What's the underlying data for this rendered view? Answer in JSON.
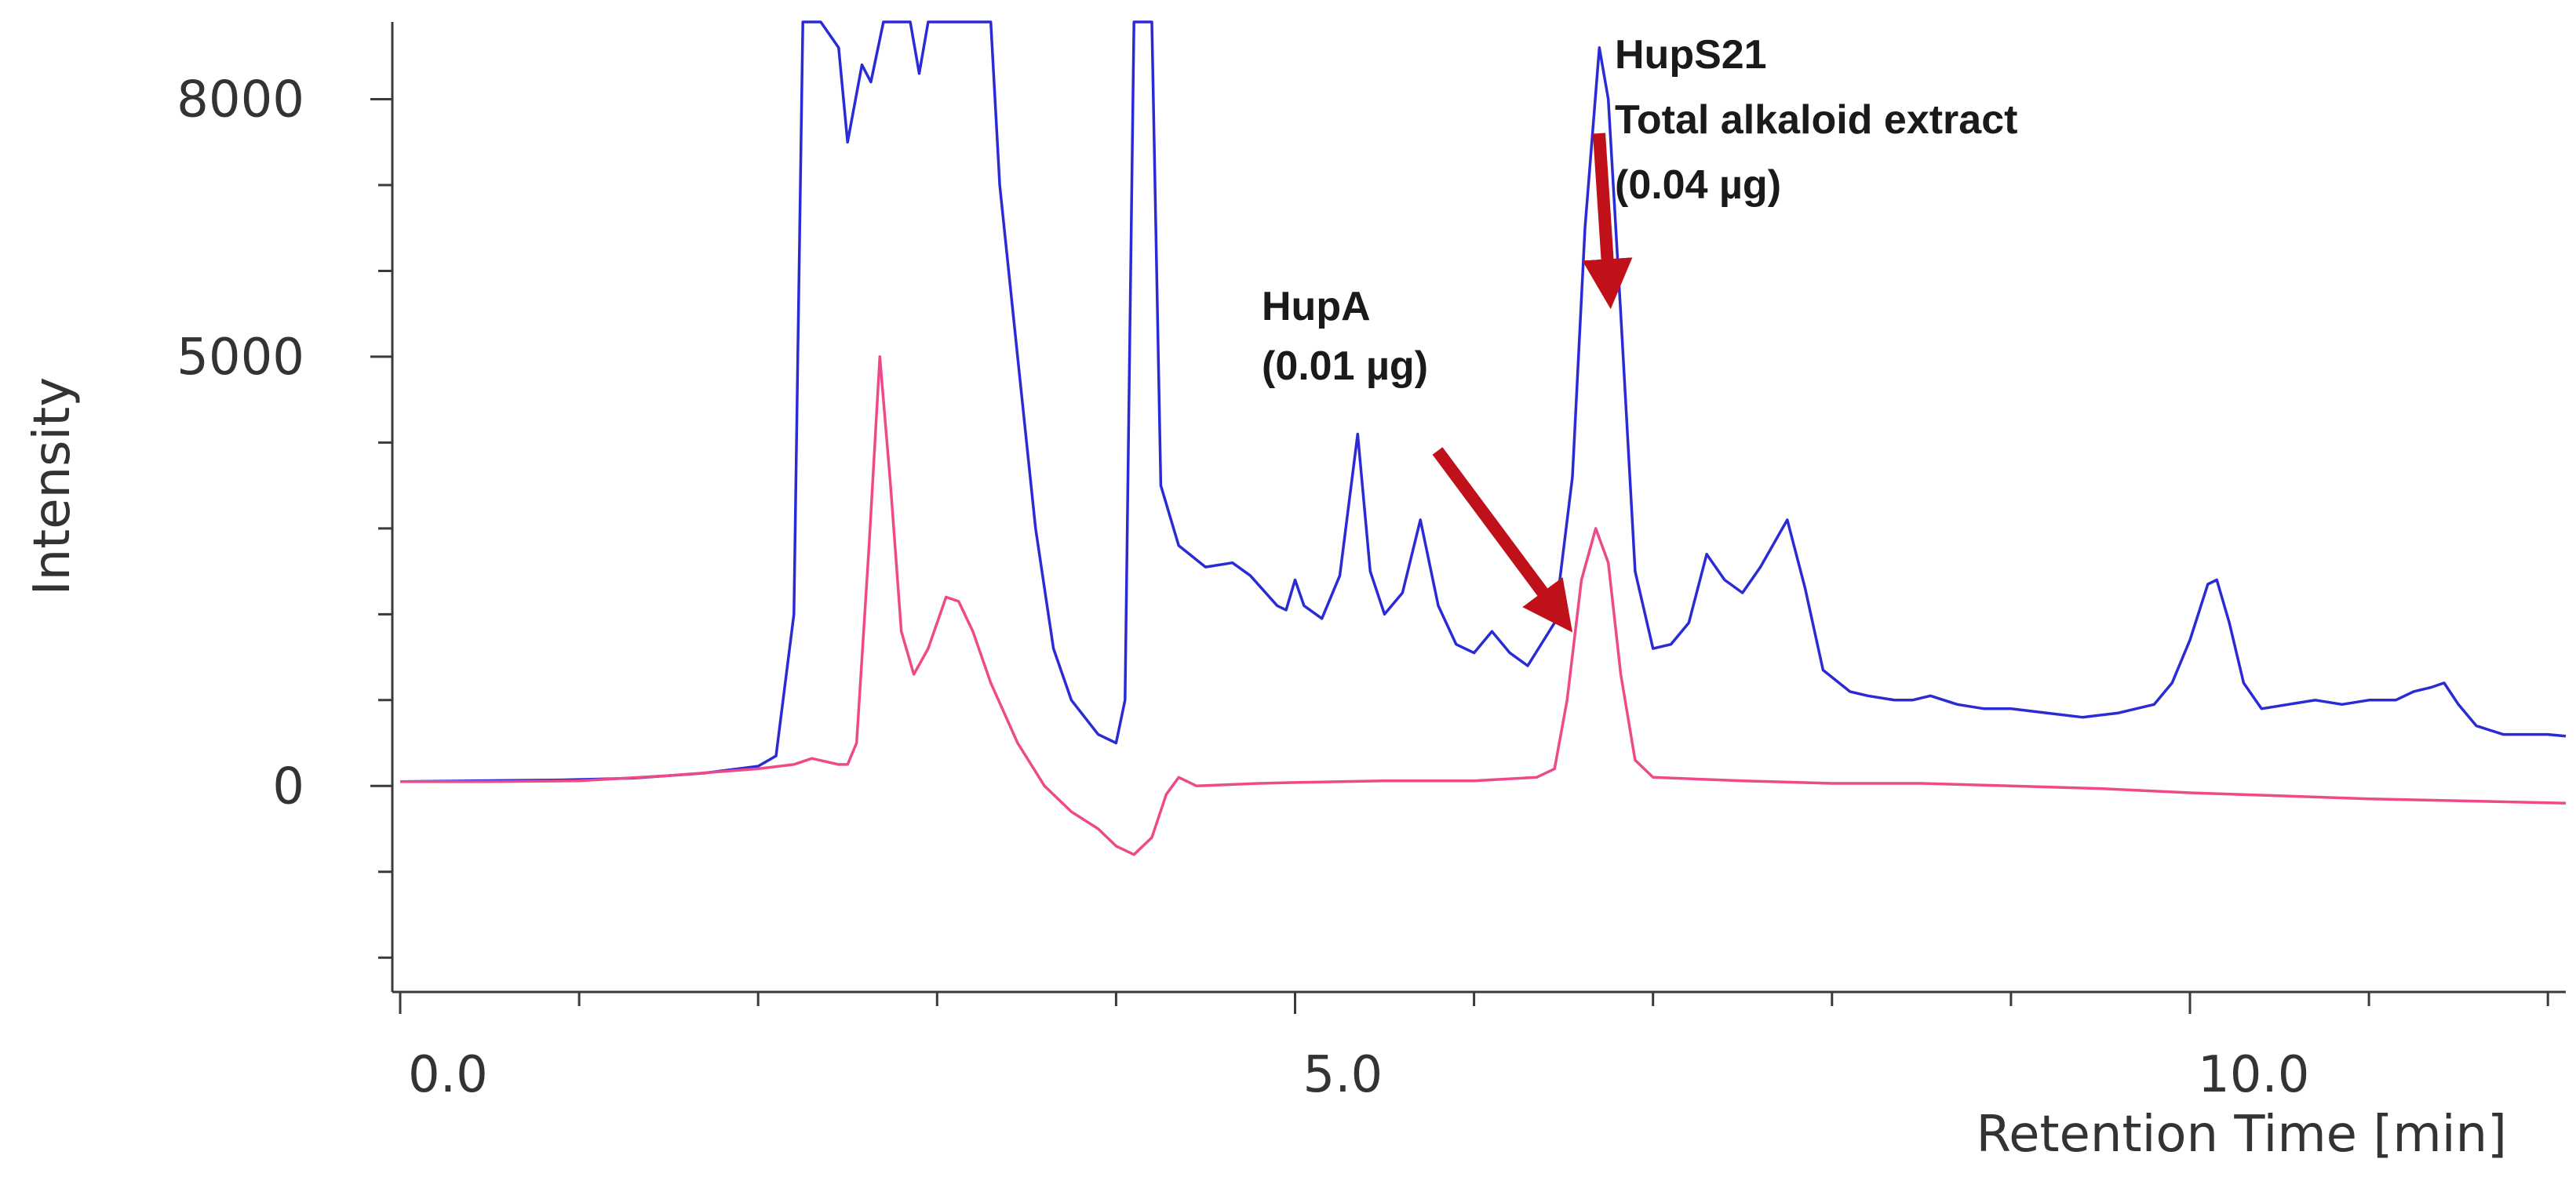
{
  "chart_data": {
    "type": "line",
    "xlabel": "Retention Time [min]",
    "ylabel": "Intensity",
    "xlim": [
      0,
      12.1
    ],
    "ylim": [
      -2400,
      8900
    ],
    "x_ticks": [
      0.0,
      5.0,
      10.0
    ],
    "x_tick_labels": [
      "0.0",
      "5.0",
      "10.0"
    ],
    "y_ticks": [
      0,
      5000,
      8000
    ],
    "y_tick_labels": [
      "0",
      "5000",
      "8000"
    ],
    "grid": false,
    "legend": "none",
    "series": [
      {
        "color": "#2b2bd6",
        "points": [
          [
            0,
            50
          ],
          [
            0.4,
            60
          ],
          [
            0.9,
            70
          ],
          [
            1.3,
            90
          ],
          [
            1.7,
            150
          ],
          [
            2.0,
            230
          ],
          [
            2.1,
            350
          ],
          [
            2.2,
            2000
          ],
          [
            2.25,
            8900
          ],
          [
            2.35,
            8900
          ],
          [
            2.45,
            8600
          ],
          [
            2.5,
            7500
          ],
          [
            2.58,
            8400
          ],
          [
            2.63,
            8200
          ],
          [
            2.7,
            8900
          ],
          [
            2.85,
            8900
          ],
          [
            2.9,
            8300
          ],
          [
            2.95,
            8900
          ],
          [
            3.3,
            8900
          ],
          [
            3.35,
            7000
          ],
          [
            3.45,
            5000
          ],
          [
            3.55,
            3000
          ],
          [
            3.6,
            2300
          ],
          [
            3.65,
            1600
          ],
          [
            3.75,
            1000
          ],
          [
            3.9,
            600
          ],
          [
            4.0,
            500
          ],
          [
            4.05,
            1000
          ],
          [
            4.1,
            8900
          ],
          [
            4.2,
            8900
          ],
          [
            4.25,
            3500
          ],
          [
            4.35,
            2800
          ],
          [
            4.5,
            2550
          ],
          [
            4.65,
            2600
          ],
          [
            4.75,
            2450
          ],
          [
            4.9,
            2100
          ],
          [
            4.95,
            2050
          ],
          [
            5.0,
            2400
          ],
          [
            5.05,
            2100
          ],
          [
            5.15,
            1950
          ],
          [
            5.25,
            2450
          ],
          [
            5.35,
            4100
          ],
          [
            5.42,
            2500
          ],
          [
            5.5,
            2000
          ],
          [
            5.6,
            2250
          ],
          [
            5.7,
            3100
          ],
          [
            5.8,
            2100
          ],
          [
            5.9,
            1650
          ],
          [
            6.0,
            1550
          ],
          [
            6.1,
            1800
          ],
          [
            6.2,
            1550
          ],
          [
            6.3,
            1400
          ],
          [
            6.45,
            1900
          ],
          [
            6.55,
            3600
          ],
          [
            6.62,
            6500
          ],
          [
            6.7,
            8600
          ],
          [
            6.75,
            8000
          ],
          [
            6.82,
            5500
          ],
          [
            6.9,
            2500
          ],
          [
            7.0,
            1600
          ],
          [
            7.1,
            1650
          ],
          [
            7.2,
            1900
          ],
          [
            7.3,
            2700
          ],
          [
            7.4,
            2400
          ],
          [
            7.5,
            2250
          ],
          [
            7.6,
            2550
          ],
          [
            7.75,
            3100
          ],
          [
            7.85,
            2300
          ],
          [
            7.95,
            1350
          ],
          [
            8.1,
            1100
          ],
          [
            8.2,
            1050
          ],
          [
            8.35,
            1000
          ],
          [
            8.45,
            1000
          ],
          [
            8.55,
            1050
          ],
          [
            8.7,
            950
          ],
          [
            8.85,
            900
          ],
          [
            9.0,
            900
          ],
          [
            9.2,
            850
          ],
          [
            9.4,
            800
          ],
          [
            9.6,
            850
          ],
          [
            9.8,
            950
          ],
          [
            9.9,
            1200
          ],
          [
            10.0,
            1700
          ],
          [
            10.1,
            2350
          ],
          [
            10.15,
            2400
          ],
          [
            10.22,
            1900
          ],
          [
            10.3,
            1200
          ],
          [
            10.4,
            900
          ],
          [
            10.55,
            950
          ],
          [
            10.7,
            1000
          ],
          [
            10.85,
            950
          ],
          [
            11.0,
            1000
          ],
          [
            11.15,
            1000
          ],
          [
            11.25,
            1100
          ],
          [
            11.35,
            1150
          ],
          [
            11.42,
            1200
          ],
          [
            11.5,
            950
          ],
          [
            11.6,
            700
          ],
          [
            11.75,
            600
          ],
          [
            12.0,
            600
          ],
          [
            12.1,
            580
          ]
        ]
      },
      {
        "color": "#ee4a8a",
        "points": [
          [
            0,
            50
          ],
          [
            0.5,
            50
          ],
          [
            1.0,
            60
          ],
          [
            1.5,
            120
          ],
          [
            2.0,
            200
          ],
          [
            2.2,
            250
          ],
          [
            2.3,
            320
          ],
          [
            2.45,
            250
          ],
          [
            2.5,
            250
          ],
          [
            2.55,
            500
          ],
          [
            2.62,
            2800
          ],
          [
            2.68,
            5000
          ],
          [
            2.74,
            3500
          ],
          [
            2.8,
            1800
          ],
          [
            2.87,
            1300
          ],
          [
            2.95,
            1600
          ],
          [
            3.05,
            2200
          ],
          [
            3.12,
            2150
          ],
          [
            3.2,
            1800
          ],
          [
            3.3,
            1200
          ],
          [
            3.45,
            500
          ],
          [
            3.6,
            0
          ],
          [
            3.75,
            -300
          ],
          [
            3.9,
            -500
          ],
          [
            4.0,
            -700
          ],
          [
            4.1,
            -800
          ],
          [
            4.2,
            -600
          ],
          [
            4.28,
            -100
          ],
          [
            4.35,
            100
          ],
          [
            4.45,
            0
          ],
          [
            4.8,
            30
          ],
          [
            5.0,
            40
          ],
          [
            5.5,
            60
          ],
          [
            6.0,
            60
          ],
          [
            6.35,
            100
          ],
          [
            6.45,
            200
          ],
          [
            6.52,
            1000
          ],
          [
            6.6,
            2400
          ],
          [
            6.68,
            3000
          ],
          [
            6.75,
            2600
          ],
          [
            6.82,
            1300
          ],
          [
            6.9,
            300
          ],
          [
            7.0,
            100
          ],
          [
            7.5,
            60
          ],
          [
            8.0,
            30
          ],
          [
            8.5,
            30
          ],
          [
            9.0,
            0
          ],
          [
            9.5,
            -30
          ],
          [
            10.0,
            -80
          ],
          [
            11.0,
            -150
          ],
          [
            12.1,
            -200
          ]
        ]
      }
    ],
    "annotations": [
      {
        "lines": [
          "HupA",
          "(0.01 µg)"
        ],
        "arrow_to": [
          6.65,
          2000
        ],
        "color": "#c0111a"
      },
      {
        "lines": [
          "HupS21",
          "Total alkaloid extract",
          "(0.04 µg)"
        ],
        "arrow_to": [
          6.72,
          6000
        ],
        "color": "#c0111a"
      }
    ]
  }
}
